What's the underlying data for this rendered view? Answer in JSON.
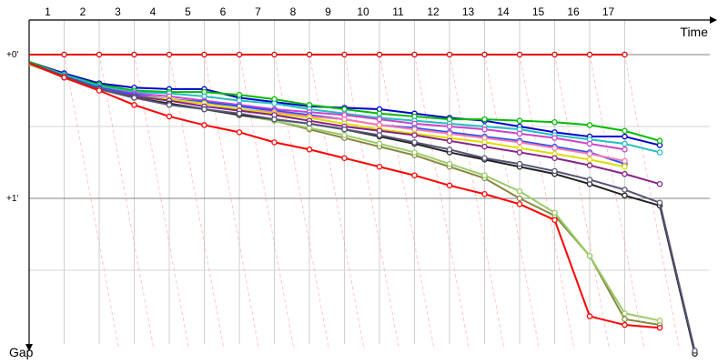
{
  "chart_data": {
    "type": "line",
    "title": "",
    "xlabel": "Time",
    "ylabel": "Gap",
    "x_ticks": [
      "1",
      "2",
      "3",
      "4",
      "5",
      "6",
      "7",
      "8",
      "9",
      "10",
      "11",
      "12",
      "13",
      "14",
      "15",
      "16",
      "17"
    ],
    "y_ticks": [
      {
        "value": 0,
        "label": "+0'"
      },
      {
        "value": 1,
        "label": "+1'"
      }
    ],
    "xlim": [
      0,
      19.4
    ],
    "ylim": [
      0,
      2.0
    ],
    "grid": true,
    "legend": "none",
    "series": [
      {
        "color": "#e00000",
        "x": [
          0,
          1,
          2,
          3,
          4,
          5,
          6,
          7,
          8,
          9,
          10,
          11,
          12,
          13,
          14,
          15,
          16,
          17
        ],
        "y": [
          0,
          0,
          0,
          0,
          0,
          0,
          0,
          0,
          0,
          0,
          0,
          0,
          0,
          0,
          0,
          0,
          0,
          0
        ]
      },
      {
        "color": "#0000cc",
        "x": [
          0,
          1,
          2,
          3,
          4,
          5,
          6,
          7,
          8,
          9,
          10,
          11,
          12,
          13,
          14,
          15,
          16,
          17,
          18
        ],
        "y": [
          0.05,
          0.13,
          0.2,
          0.23,
          0.24,
          0.24,
          0.3,
          0.33,
          0.36,
          0.37,
          0.38,
          0.41,
          0.44,
          0.46,
          0.5,
          0.54,
          0.57,
          0.57,
          0.63
        ]
      },
      {
        "color": "#00bb00",
        "x": [
          0,
          1,
          2,
          3,
          4,
          5,
          6,
          7,
          8,
          9,
          10,
          11,
          12,
          13,
          14,
          15,
          16,
          17,
          18
        ],
        "y": [
          0.05,
          0.14,
          0.21,
          0.25,
          0.26,
          0.26,
          0.28,
          0.31,
          0.35,
          0.38,
          0.41,
          0.43,
          0.45,
          0.45,
          0.46,
          0.47,
          0.49,
          0.53,
          0.6
        ]
      },
      {
        "color": "#20c0c0",
        "x": [
          0,
          1,
          2,
          3,
          4,
          5,
          6,
          7,
          8,
          9,
          10,
          11,
          12,
          13,
          14,
          15,
          16,
          17,
          18
        ],
        "y": [
          0.06,
          0.14,
          0.22,
          0.26,
          0.27,
          0.29,
          0.32,
          0.34,
          0.38,
          0.41,
          0.44,
          0.46,
          0.48,
          0.5,
          0.52,
          0.56,
          0.59,
          0.62,
          0.68
        ]
      },
      {
        "color": "#cc44cc",
        "x": [
          0,
          1,
          2,
          3,
          4,
          5,
          6,
          7,
          8,
          9,
          10,
          11,
          12,
          13,
          14,
          15,
          16,
          17
        ],
        "y": [
          0.06,
          0.15,
          0.23,
          0.27,
          0.29,
          0.32,
          0.35,
          0.38,
          0.4,
          0.42,
          0.45,
          0.48,
          0.5,
          0.52,
          0.55,
          0.58,
          0.62,
          0.66
        ]
      },
      {
        "color": "#2255ff",
        "x": [
          0,
          1,
          2,
          3,
          4,
          5,
          6,
          7,
          8,
          9,
          10,
          11,
          12,
          13,
          14,
          15,
          16,
          17
        ],
        "y": [
          0.06,
          0.15,
          0.23,
          0.28,
          0.31,
          0.33,
          0.36,
          0.39,
          0.42,
          0.45,
          0.49,
          0.51,
          0.54,
          0.57,
          0.6,
          0.64,
          0.68,
          0.76
        ]
      },
      {
        "color": "#ff77aa",
        "x": [
          0,
          1,
          2,
          3,
          4,
          5,
          6,
          7,
          8,
          9,
          10,
          11,
          12,
          13,
          14,
          15,
          16,
          17
        ],
        "y": [
          0.06,
          0.15,
          0.24,
          0.29,
          0.32,
          0.34,
          0.38,
          0.4,
          0.43,
          0.45,
          0.49,
          0.52,
          0.55,
          0.58,
          0.61,
          0.65,
          0.69,
          0.74
        ]
      },
      {
        "color": "#dddd00",
        "x": [
          0,
          1,
          2,
          3,
          4,
          5,
          6,
          7,
          8,
          9,
          10,
          11,
          12,
          13,
          14,
          15,
          16,
          17
        ],
        "y": [
          0.06,
          0.15,
          0.24,
          0.29,
          0.31,
          0.34,
          0.38,
          0.41,
          0.44,
          0.48,
          0.52,
          0.55,
          0.58,
          0.61,
          0.65,
          0.69,
          0.73,
          0.78
        ]
      },
      {
        "color": "#882288",
        "x": [
          0,
          1,
          2,
          3,
          4,
          5,
          6,
          7,
          8,
          9,
          10,
          11,
          12,
          13,
          14,
          15,
          16,
          17,
          18
        ],
        "y": [
          0.06,
          0.15,
          0.24,
          0.29,
          0.32,
          0.36,
          0.39,
          0.42,
          0.46,
          0.5,
          0.53,
          0.56,
          0.6,
          0.64,
          0.68,
          0.72,
          0.77,
          0.83,
          0.9
        ]
      },
      {
        "color": "#888844",
        "x": [
          0,
          1,
          2,
          3,
          4,
          5,
          6,
          7,
          8,
          9,
          10,
          11,
          12,
          13,
          14,
          15,
          16,
          17,
          18
        ],
        "y": [
          0.07,
          0.15,
          0.24,
          0.3,
          0.34,
          0.38,
          0.42,
          0.46,
          0.52,
          0.58,
          0.64,
          0.7,
          0.78,
          0.86,
          1.0,
          1.12,
          1.4,
          1.84,
          1.88
        ]
      },
      {
        "color": "#99cc66",
        "x": [
          0,
          1,
          2,
          3,
          4,
          5,
          6,
          7,
          8,
          9,
          10,
          11,
          12,
          13,
          14,
          15,
          16,
          17,
          18
        ],
        "y": [
          0.07,
          0.15,
          0.24,
          0.3,
          0.34,
          0.38,
          0.42,
          0.46,
          0.51,
          0.56,
          0.62,
          0.68,
          0.76,
          0.84,
          0.95,
          1.1,
          1.4,
          1.8,
          1.85
        ]
      },
      {
        "color": "#222222",
        "x": [
          0,
          1,
          2,
          3,
          4,
          5,
          6,
          7,
          8,
          9,
          10,
          11,
          12,
          13,
          14,
          15,
          16,
          17,
          18,
          19
        ],
        "y": [
          0.06,
          0.15,
          0.24,
          0.3,
          0.34,
          0.38,
          0.42,
          0.45,
          0.48,
          0.52,
          0.57,
          0.62,
          0.68,
          0.73,
          0.78,
          0.83,
          0.9,
          0.98,
          1.05,
          2.08
        ]
      },
      {
        "color": "#555577",
        "x": [
          0,
          1,
          2,
          3,
          4,
          5,
          6,
          7,
          8,
          9,
          10,
          11,
          12,
          13,
          14,
          15,
          16,
          17,
          18,
          19
        ],
        "y": [
          0.06,
          0.15,
          0.24,
          0.3,
          0.35,
          0.38,
          0.41,
          0.45,
          0.48,
          0.52,
          0.56,
          0.61,
          0.66,
          0.72,
          0.76,
          0.81,
          0.87,
          0.94,
          1.03,
          2.06
        ]
      },
      {
        "color": "#ff0000",
        "x": [
          0,
          1,
          2,
          3,
          4,
          5,
          6,
          7,
          8,
          9,
          10,
          11,
          12,
          13,
          14,
          15,
          16,
          17,
          18
        ],
        "y": [
          0.06,
          0.16,
          0.25,
          0.35,
          0.43,
          0.49,
          0.54,
          0.61,
          0.66,
          0.72,
          0.78,
          0.84,
          0.91,
          0.97,
          1.04,
          1.15,
          1.82,
          1.88,
          1.9
        ]
      }
    ]
  }
}
